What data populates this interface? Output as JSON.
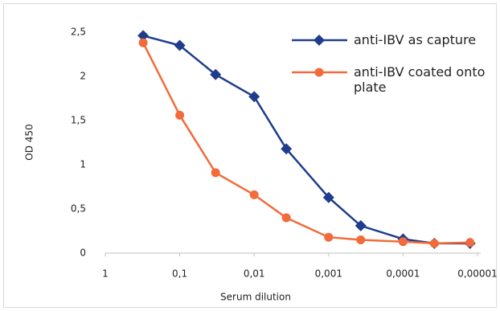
{
  "chart_data": {
    "type": "line",
    "x_label": "Serum dilution",
    "y_label": "OD 450",
    "x": [
      0.31,
      0.1,
      0.033,
      0.01,
      0.0037,
      0.001,
      0.00037,
      0.0001,
      3.8e-05,
      1.26e-05
    ],
    "xlim": [
      1,
      1e-05
    ],
    "xticks": [
      1,
      {
        "value": 0.1,
        "label": "0,1"
      },
      {
        "value": 0.01,
        "label": "0,01"
      },
      {
        "value": 0.001,
        "label": "0,001"
      },
      {
        "value": 0.0001,
        "label": "0,0001"
      },
      {
        "value": 1e-05,
        "label": "0,00001"
      }
    ],
    "x_log_scale": true,
    "x_reversed": true,
    "ylim": [
      0,
      2.5
    ],
    "yticks": [
      0,
      {
        "value": 0.5,
        "label": "0,5"
      },
      1,
      {
        "value": 1.5,
        "label": "1,5"
      },
      2,
      {
        "value": 2.5,
        "label": "2,5"
      }
    ],
    "legend_position": "upper right",
    "series": [
      {
        "name": "anti-IBV as capture",
        "color": "#1f3d8c",
        "marker": "diamond",
        "values": [
          2.46,
          2.35,
          2.02,
          1.77,
          1.18,
          0.63,
          0.31,
          0.16,
          0.11,
          0.11
        ]
      },
      {
        "name": "anti-IBV coated onto plate",
        "color": "#f26b3a",
        "marker": "circle",
        "values": [
          2.38,
          1.56,
          0.91,
          0.66,
          0.4,
          0.18,
          0.15,
          0.13,
          0.11,
          0.12
        ]
      }
    ]
  }
}
